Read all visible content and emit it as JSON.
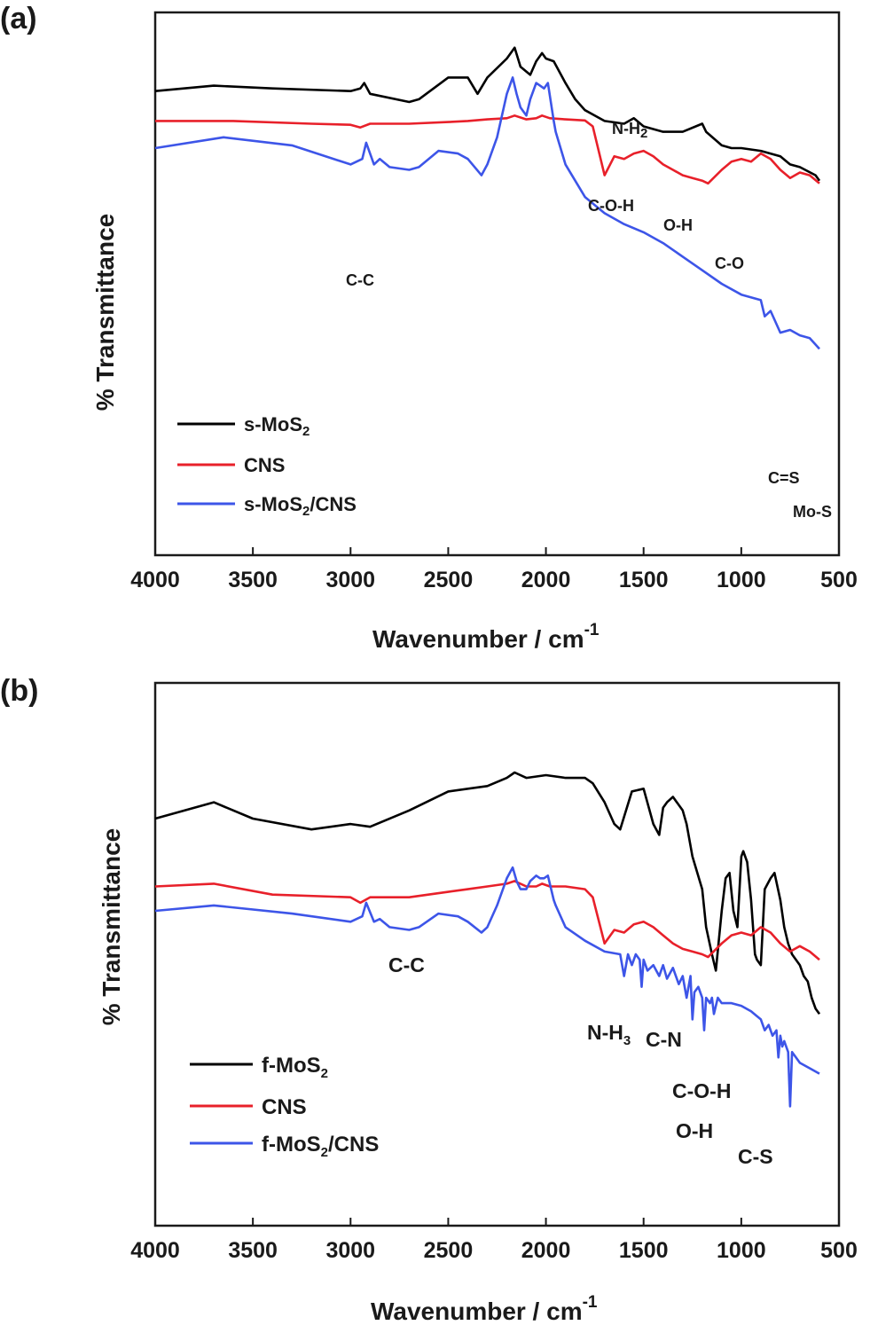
{
  "chart_data": [
    {
      "type": "line",
      "panel_label": "(a)",
      "xlabel": "Wavenumber / cm",
      "xlabel_sup": "-1",
      "ylabel": "% Transmittance",
      "xlim": [
        4000,
        500
      ],
      "x_ticks": [
        4000,
        3500,
        3000,
        2500,
        2000,
        1500,
        1000,
        500
      ],
      "y_units": "arbitrary (offset traces, top = 100)",
      "series": [
        {
          "name": "s-MoS",
          "sub": "2",
          "suffix": "",
          "color": "#000000",
          "x": [
            4000,
            3700,
            3400,
            3000,
            2950,
            2930,
            2900,
            2700,
            2650,
            2500,
            2400,
            2350,
            2300,
            2200,
            2160,
            2130,
            2080,
            2050,
            2020,
            2000,
            1960,
            1900,
            1850,
            1800,
            1700,
            1600,
            1550,
            1500,
            1400,
            1300,
            1200,
            1180,
            1100,
            1050,
            1000,
            900,
            800,
            750,
            700,
            620,
            600
          ],
          "y": [
            85.5,
            86.5,
            86,
            85.5,
            86,
            87,
            85,
            83.5,
            84,
            88,
            88,
            85,
            88,
            91.5,
            93.5,
            90,
            88.5,
            91,
            92.5,
            91.5,
            91,
            87,
            84,
            82,
            80,
            79.5,
            80.5,
            79,
            78,
            78,
            79.5,
            78,
            75.5,
            75,
            75,
            74.5,
            73.5,
            72,
            71.5,
            70,
            69
          ]
        },
        {
          "name": "CNS",
          "sub": "",
          "suffix": "",
          "color": "#e8202a",
          "x": [
            4000,
            3600,
            3200,
            3000,
            2950,
            2900,
            2700,
            2500,
            2400,
            2300,
            2200,
            2160,
            2100,
            2050,
            2020,
            1980,
            1900,
            1800,
            1760,
            1700,
            1650,
            1600,
            1550,
            1500,
            1450,
            1400,
            1350,
            1300,
            1250,
            1200,
            1170,
            1100,
            1050,
            1000,
            950,
            900,
            850,
            800,
            750,
            700,
            650,
            600
          ],
          "y": [
            80,
            80,
            79.5,
            79.3,
            78.8,
            79.5,
            79.5,
            79.8,
            80,
            80.3,
            80.5,
            81,
            80.3,
            80.5,
            81,
            80.5,
            80.3,
            80.1,
            79,
            70,
            73.5,
            73,
            74,
            74.5,
            73.5,
            72,
            71,
            70,
            69.5,
            69,
            68.5,
            71,
            72.5,
            73,
            72.5,
            74,
            73,
            71,
            69.5,
            70.5,
            70,
            68.5
          ]
        },
        {
          "name": "s-MoS",
          "sub": "2",
          "suffix": "/CNS",
          "color": "#3d55e8",
          "x": [
            4000,
            3650,
            3300,
            3000,
            2940,
            2920,
            2880,
            2850,
            2800,
            2700,
            2650,
            2550,
            2450,
            2400,
            2330,
            2300,
            2250,
            2200,
            2170,
            2150,
            2130,
            2100,
            2080,
            2050,
            2030,
            2010,
            1990,
            1960,
            1950,
            1900,
            1800,
            1700,
            1600,
            1500,
            1400,
            1300,
            1200,
            1100,
            1000,
            900,
            880,
            850,
            800,
            750,
            700,
            650,
            600
          ],
          "y": [
            75,
            77,
            75.5,
            72,
            73,
            76,
            72,
            73,
            71.5,
            71,
            71.5,
            74.5,
            74,
            73,
            70,
            72,
            77,
            85,
            88,
            85,
            82.5,
            81,
            84,
            87,
            86.5,
            86,
            87,
            80,
            78,
            72,
            66,
            63,
            61,
            59.5,
            57.5,
            55,
            52.5,
            50,
            48,
            47,
            44,
            45,
            41,
            41.5,
            40.5,
            40,
            38
          ]
        }
      ],
      "annotations": [
        "N-H",
        "C-O-H",
        "O-H",
        "C-O",
        "C-C",
        "C=S",
        "Mo-S"
      ],
      "annotation_subs": {
        "N-H": "2"
      },
      "legend_position": "bottom-left"
    },
    {
      "type": "line",
      "panel_label": "(b)",
      "xlabel": "Wavenumber / cm",
      "xlabel_sup": "-1",
      "ylabel": "% Transmittance",
      "xlim": [
        4000,
        500
      ],
      "x_ticks": [
        4000,
        3500,
        3000,
        2500,
        2000,
        1500,
        1000,
        500
      ],
      "y_units": "arbitrary (offset traces, top = 100)",
      "series": [
        {
          "name": "f-MoS",
          "sub": "2",
          "suffix": "",
          "color": "#000000",
          "x": [
            4000,
            3700,
            3500,
            3200,
            3000,
            2900,
            2700,
            2500,
            2300,
            2200,
            2160,
            2100,
            2000,
            1900,
            1800,
            1760,
            1700,
            1650,
            1620,
            1560,
            1500,
            1450,
            1420,
            1400,
            1380,
            1350,
            1300,
            1280,
            1250,
            1200,
            1180,
            1150,
            1130,
            1100,
            1080,
            1060,
            1040,
            1020,
            1000,
            990,
            970,
            950,
            930,
            920,
            900,
            880,
            850,
            830,
            800,
            780,
            760,
            740,
            720,
            700,
            680,
            660,
            640,
            620,
            600
          ],
          "y": [
            75,
            78,
            75,
            73,
            74,
            73.5,
            76.5,
            80,
            81,
            82.5,
            83.5,
            82.5,
            83,
            82.5,
            82.5,
            81.5,
            78,
            74,
            73,
            80,
            80.5,
            74,
            72,
            77,
            78,
            79,
            76.5,
            74,
            68,
            62,
            55,
            50,
            47,
            58,
            64,
            65,
            58,
            55,
            68,
            69,
            67,
            60,
            50,
            49,
            48,
            62,
            64,
            65,
            60,
            55,
            52,
            50,
            49,
            48,
            46,
            45,
            42,
            40,
            39
          ]
        },
        {
          "name": "CNS",
          "sub": "",
          "suffix": "",
          "color": "#e8202a",
          "x": [
            4000,
            3700,
            3400,
            3000,
            2950,
            2900,
            2700,
            2500,
            2400,
            2300,
            2200,
            2160,
            2100,
            2050,
            2020,
            1980,
            1900,
            1800,
            1760,
            1700,
            1650,
            1600,
            1550,
            1500,
            1450,
            1400,
            1350,
            1300,
            1250,
            1200,
            1170,
            1100,
            1050,
            1000,
            950,
            900,
            850,
            800,
            750,
            700,
            650,
            600
          ],
          "y": [
            62.5,
            63,
            61,
            60.5,
            59.5,
            60.5,
            60.5,
            61.5,
            62,
            62.5,
            63,
            63.5,
            62.5,
            62.5,
            63,
            62.5,
            62.5,
            62,
            60.5,
            52,
            54.5,
            54,
            55.5,
            56,
            55,
            53.5,
            52,
            51,
            50.5,
            50,
            49.5,
            52,
            53.5,
            54,
            53.5,
            55,
            54,
            52,
            50.5,
            51.5,
            50.5,
            49
          ]
        },
        {
          "name": "f-MoS",
          "sub": "2",
          "suffix": "/CNS",
          "color": "#3d55e8",
          "x": [
            4000,
            3700,
            3300,
            3000,
            2940,
            2920,
            2880,
            2850,
            2800,
            2700,
            2650,
            2550,
            2450,
            2400,
            2330,
            2300,
            2250,
            2200,
            2170,
            2150,
            2130,
            2100,
            2080,
            2050,
            2030,
            2010,
            1990,
            1960,
            1950,
            1900,
            1800,
            1700,
            1620,
            1600,
            1580,
            1560,
            1540,
            1520,
            1510,
            1500,
            1480,
            1450,
            1420,
            1400,
            1380,
            1350,
            1320,
            1300,
            1280,
            1260,
            1250,
            1240,
            1220,
            1200,
            1190,
            1180,
            1160,
            1150,
            1140,
            1120,
            1100,
            1050,
            1000,
            950,
            900,
            880,
            860,
            840,
            820,
            810,
            800,
            790,
            780,
            760,
            750,
            740,
            720,
            700,
            650,
            600
          ],
          "y": [
            58,
            59,
            57.5,
            56,
            57,
            59.5,
            56,
            56.5,
            55,
            54.5,
            55,
            57.5,
            57,
            56,
            54,
            55,
            59,
            64,
            66,
            63.5,
            62,
            62,
            63.5,
            64.5,
            64,
            64,
            64.5,
            60,
            59,
            55,
            52.5,
            50.5,
            50,
            46,
            50,
            48,
            50,
            49,
            44,
            49,
            47,
            48,
            46,
            48,
            45.5,
            47.5,
            44.5,
            46,
            42,
            46,
            38,
            43,
            44,
            42,
            36,
            42,
            41,
            42,
            39,
            42,
            41,
            41,
            40.5,
            39.5,
            38,
            36,
            37,
            35,
            36,
            31,
            35,
            33,
            34,
            32,
            22,
            32,
            31,
            30,
            29,
            28
          ]
        }
      ],
      "annotations": [
        "C-C",
        "N-H",
        "C-N",
        "C-O-H",
        "O-H",
        "C-S"
      ],
      "annotation_subs": {
        "N-H": "3"
      },
      "legend_position": "bottom-left"
    }
  ]
}
